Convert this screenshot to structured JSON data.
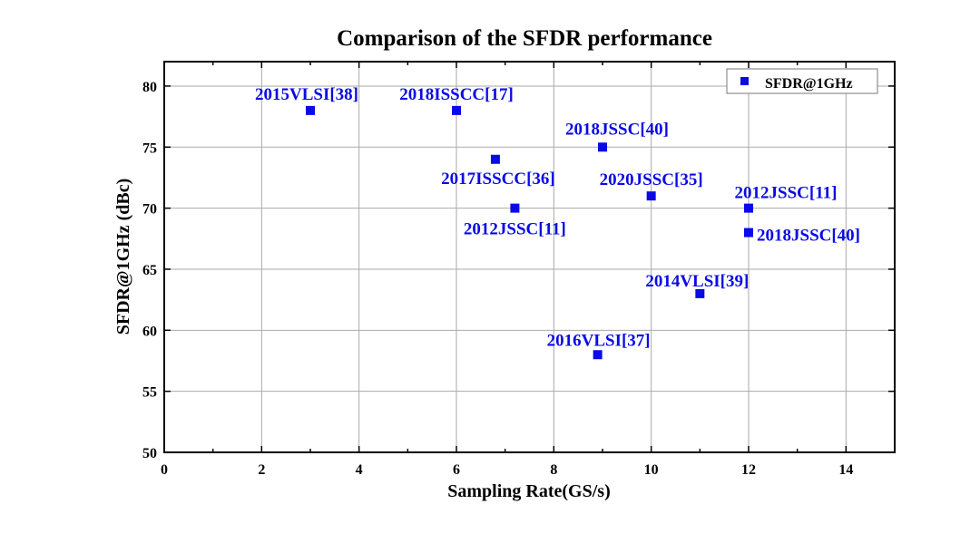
{
  "chart_data": {
    "type": "scatter",
    "title": "Comparison of the SFDR performance",
    "xlabel": "Sampling Rate(GS/s)",
    "ylabel": "SFDR@1GHz (dBc)",
    "xlim": [
      0,
      15
    ],
    "ylim": [
      50,
      82
    ],
    "xticks": [
      0,
      2,
      4,
      6,
      8,
      10,
      12,
      14
    ],
    "yticks": [
      50,
      55,
      60,
      65,
      70,
      75,
      80
    ],
    "grid": true,
    "legend": {
      "entries": [
        "SFDR@1GHz"
      ],
      "placement": "top-right"
    },
    "series": [
      {
        "name": "SFDR@1GHz",
        "color": "#0a0ae6",
        "points": [
          {
            "x": 3,
            "y": 78,
            "label": "2015VLSI[38]"
          },
          {
            "x": 6,
            "y": 78,
            "label": "2018ISSCC[17]"
          },
          {
            "x": 9,
            "y": 75,
            "label": "2018JSSC[40]"
          },
          {
            "x": 6.8,
            "y": 74,
            "label": "2017ISSCC[36]"
          },
          {
            "x": 7.2,
            "y": 70,
            "label": "2012JSSC[11]"
          },
          {
            "x": 10,
            "y": 71,
            "label": "2020JSSC[35]"
          },
          {
            "x": 12,
            "y": 70,
            "label": "2012JSSC[11]"
          },
          {
            "x": 12,
            "y": 68,
            "label": "2018JSSC[40]"
          },
          {
            "x": 11,
            "y": 63,
            "label": "2014VLSI[39]"
          },
          {
            "x": 8.9,
            "y": 58,
            "label": "2016VLSI[37]"
          }
        ]
      }
    ]
  }
}
